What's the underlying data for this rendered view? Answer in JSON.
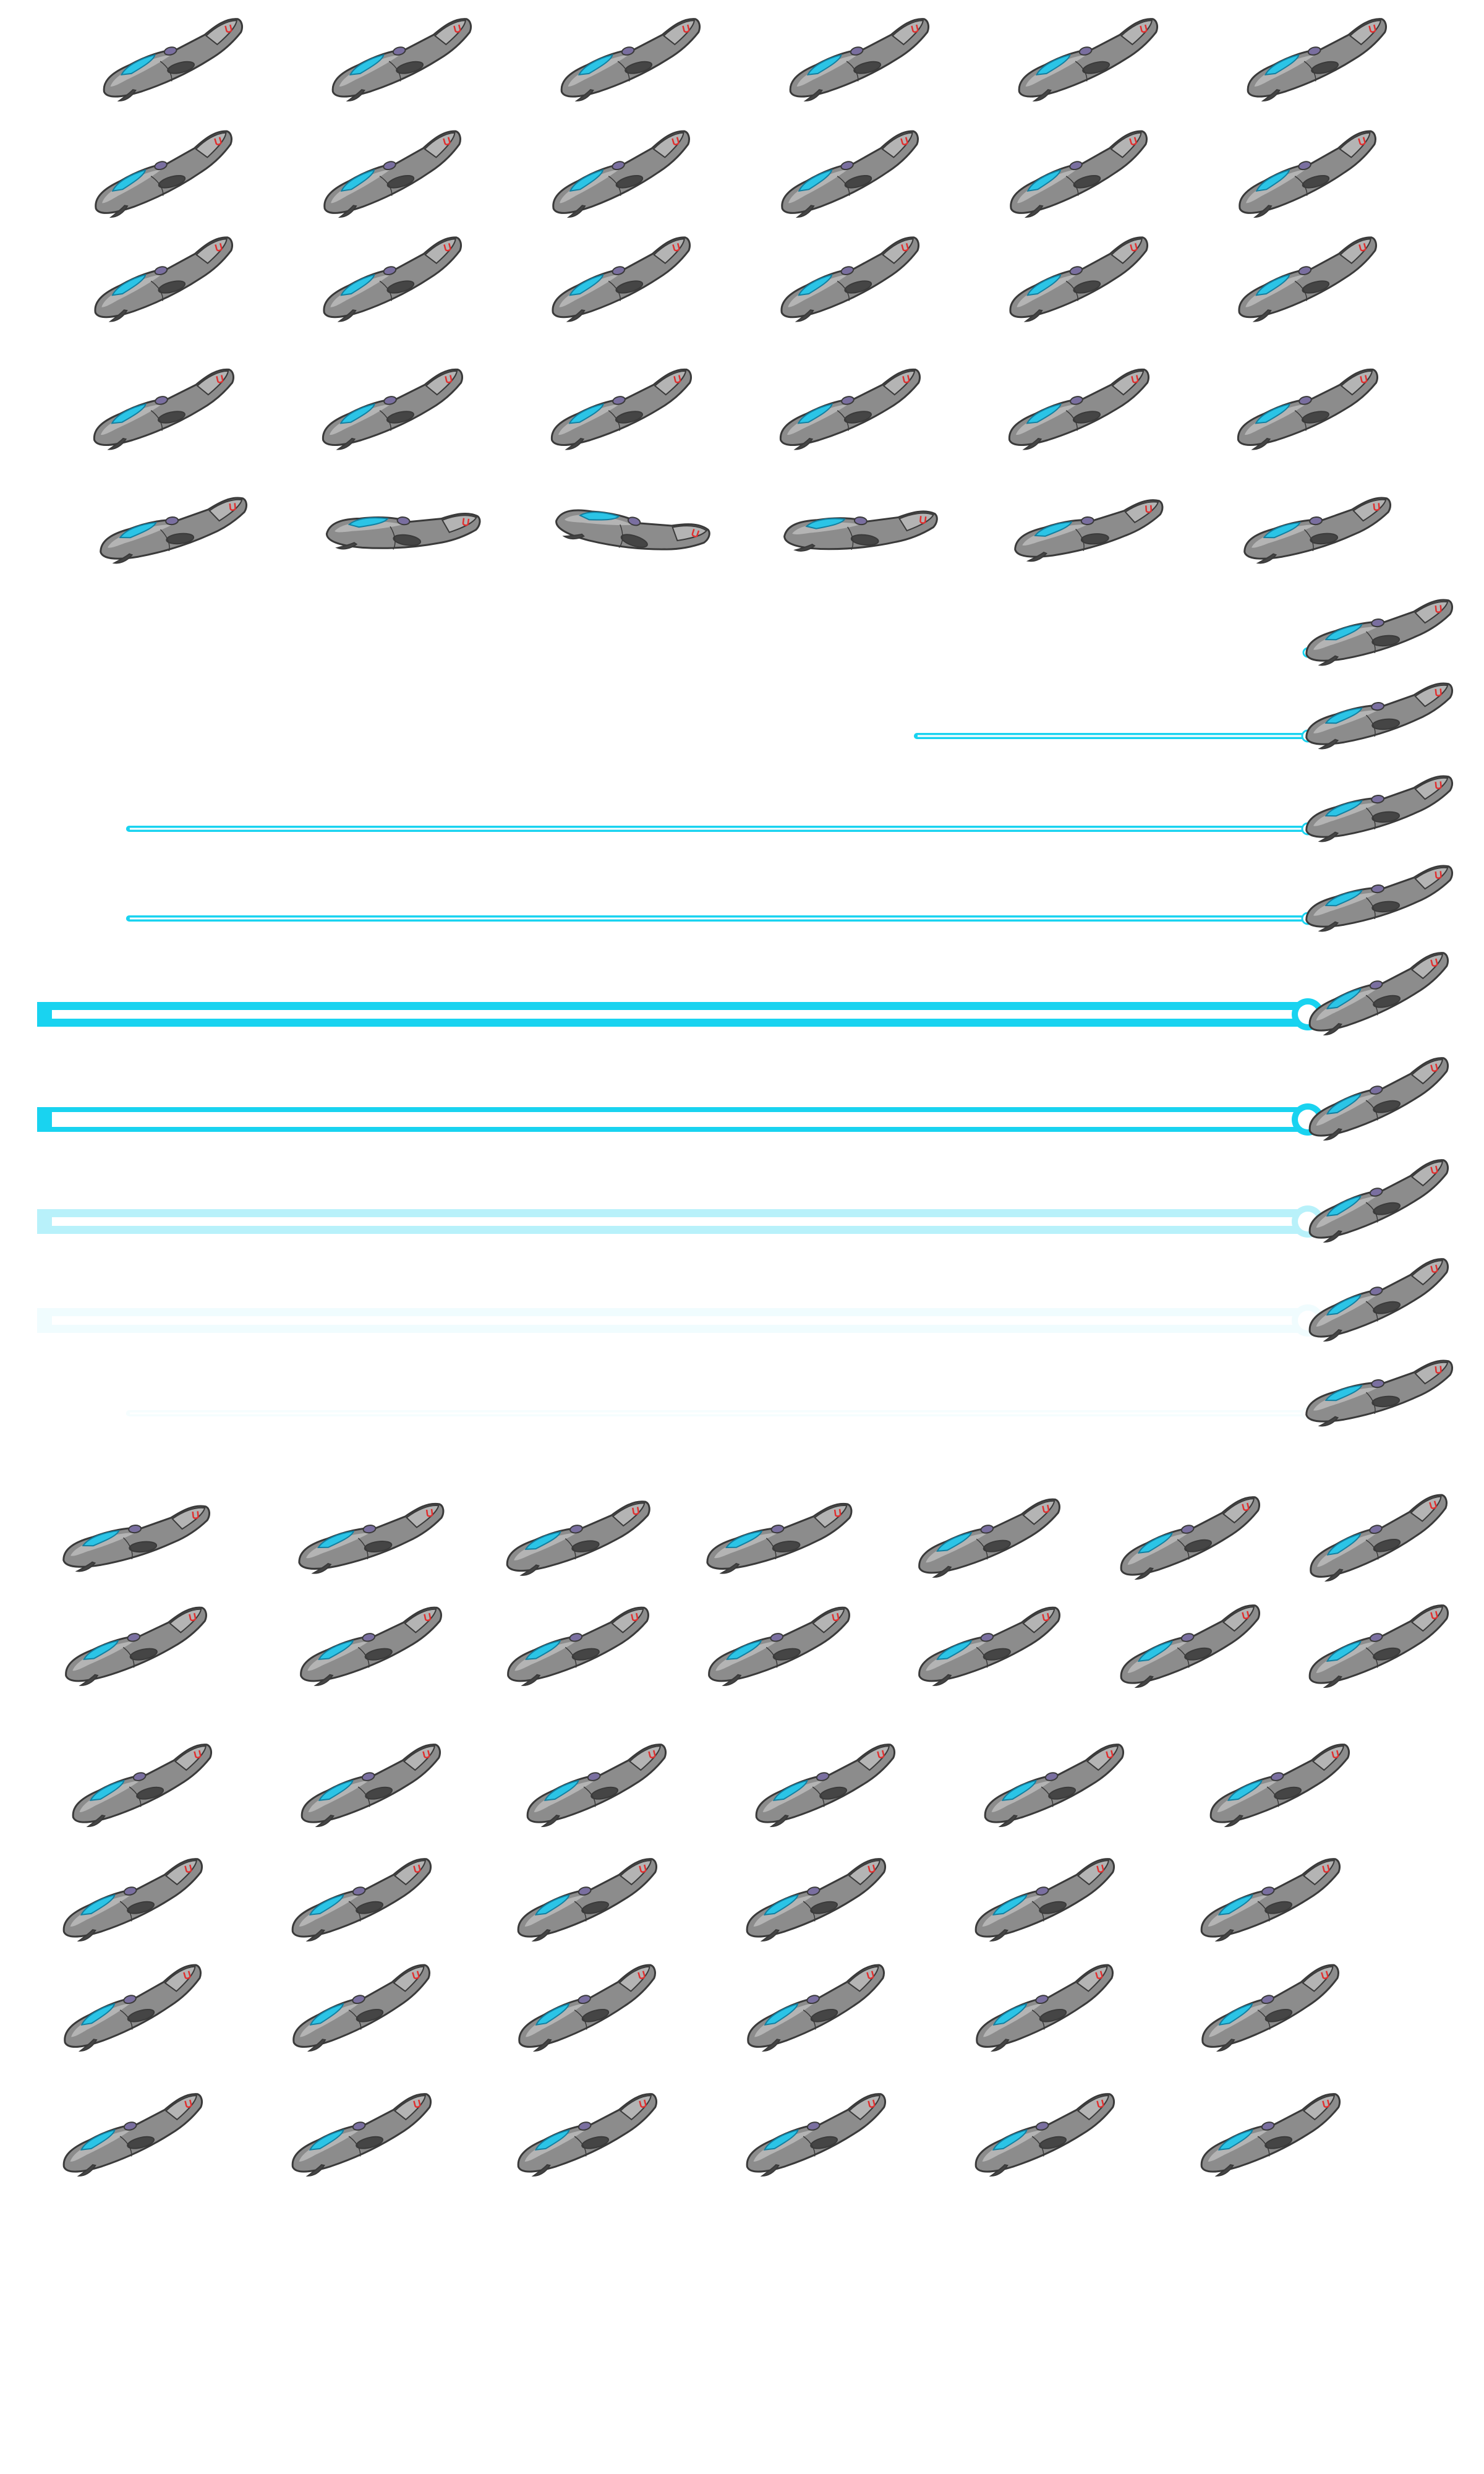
{
  "sheet": {
    "background": "#ffffff",
    "colors": {
      "hull": "#8c8c8c",
      "hull_light": "#b4b4b4",
      "outline": "#3a3a3a",
      "cockpit": "#2bc4e6",
      "cockpit_dark": "#137fa0",
      "emblem": "#e03030",
      "engine": "#454545",
      "turret": "#7a6fa0",
      "beam": "#19d3f0",
      "beam_core": "#ffffff"
    },
    "sprite_icon": "hovercraft-sprite",
    "groups": [
      {
        "name": "idle-rows",
        "rows": [
          {
            "count": 6,
            "tilt_deg": [
              -14,
              -14,
              -14,
              -14,
              -14,
              -14
            ]
          },
          {
            "count": 6,
            "tilt_deg": [
              -16,
              -16,
              -16,
              -16,
              -16,
              -16
            ]
          },
          {
            "count": 6,
            "tilt_deg": [
              -15,
              -15,
              -15,
              -15,
              -15,
              -15
            ]
          },
          {
            "count": 6,
            "tilt_deg": [
              -13,
              -13,
              -13,
              -13,
              -13,
              -13
            ]
          },
          {
            "count": 6,
            "tilt_deg": [
              -6,
              8,
              18,
              6,
              -4,
              -6
            ]
          }
        ]
      },
      {
        "name": "laser-attack",
        "frames": [
          {
            "beam_length": 0.0,
            "beam_style": "spark",
            "beam_opacity": 1.0
          },
          {
            "beam_length": 0.31,
            "beam_style": "thin",
            "beam_opacity": 1.0
          },
          {
            "beam_length": 0.93,
            "beam_style": "thin",
            "beam_opacity": 1.0
          },
          {
            "beam_length": 0.93,
            "beam_style": "thin",
            "beam_opacity": 1.0
          },
          {
            "beam_length": 1.0,
            "beam_style": "thick",
            "beam_opacity": 1.0
          },
          {
            "beam_length": 1.0,
            "beam_style": "hollow",
            "beam_opacity": 1.0
          },
          {
            "beam_length": 1.0,
            "beam_style": "thick",
            "beam_opacity": 0.3
          },
          {
            "beam_length": 1.0,
            "beam_style": "thick",
            "beam_opacity": 0.06
          },
          {
            "beam_length": 0.93,
            "beam_style": "thin",
            "beam_opacity": 0.04
          }
        ]
      },
      {
        "name": "move-rows",
        "rows": [
          {
            "count": 7,
            "tilt_deg": [
              -6,
              -8,
              -10,
              -8,
              -12,
              -14,
              -16
            ]
          },
          {
            "count": 7,
            "tilt_deg": [
              -12,
              -12,
              -12,
              -12,
              -12,
              -14,
              -14
            ]
          },
          {
            "count": 6,
            "tilt_deg": [
              -14,
              -14,
              -14,
              -14,
              -14,
              -14
            ]
          },
          {
            "count": 6,
            "tilt_deg": [
              -14,
              -14,
              -14,
              -14,
              -14,
              -14
            ]
          },
          {
            "count": 6,
            "tilt_deg": [
              -16,
              -16,
              -16,
              -16,
              -16,
              -16
            ]
          },
          {
            "count": 6,
            "tilt_deg": [
              -14,
              -14,
              -14,
              -14,
              -14,
              -14
            ]
          }
        ]
      }
    ]
  }
}
